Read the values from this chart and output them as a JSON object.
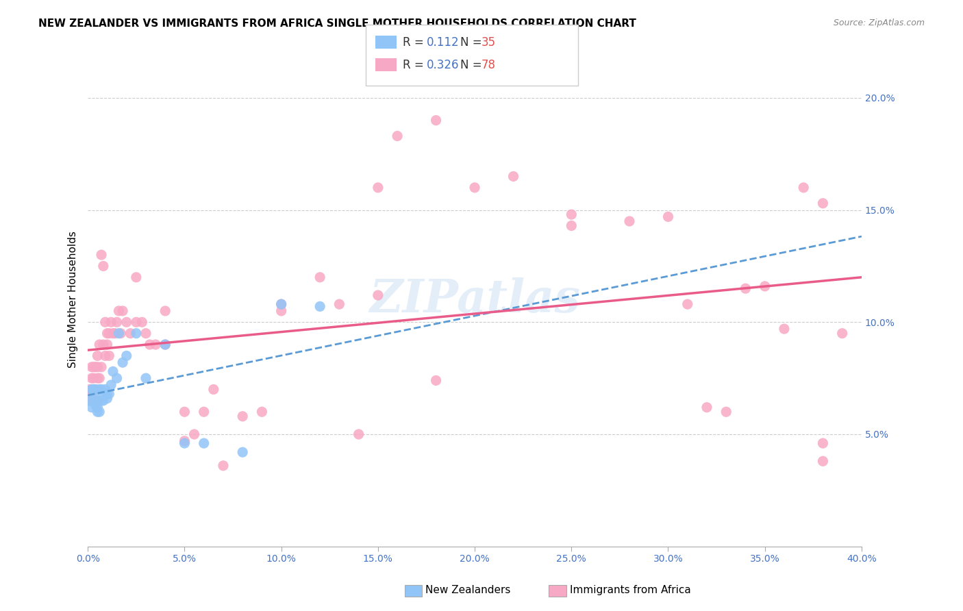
{
  "title": "NEW ZEALANDER VS IMMIGRANTS FROM AFRICA SINGLE MOTHER HOUSEHOLDS CORRELATION CHART",
  "source": "Source: ZipAtlas.com",
  "ylabel": "Single Mother Households",
  "ylabel_right_ticks": [
    "5.0%",
    "10.0%",
    "15.0%",
    "20.0%"
  ],
  "ylabel_right_vals": [
    0.05,
    0.1,
    0.15,
    0.2
  ],
  "xmin": 0.0,
  "xmax": 0.4,
  "ymin": 0.0,
  "ymax": 0.22,
  "nz_R": "0.112",
  "nz_N": "35",
  "af_R": "0.326",
  "af_N": "78",
  "nz_color": "#92c5f7",
  "af_color": "#f7a8c4",
  "nz_line_color": "#5b9bd5",
  "af_line_color": "#e95c8a",
  "watermark": "ZIPatlas",
  "nz_scatter_x": [
    0.001,
    0.002,
    0.002,
    0.003,
    0.003,
    0.003,
    0.004,
    0.004,
    0.005,
    0.005,
    0.005,
    0.006,
    0.006,
    0.007,
    0.007,
    0.008,
    0.008,
    0.009,
    0.01,
    0.01,
    0.011,
    0.012,
    0.013,
    0.015,
    0.016,
    0.018,
    0.02,
    0.025,
    0.03,
    0.04,
    0.05,
    0.06,
    0.08,
    0.1,
    0.12
  ],
  "nz_scatter_y": [
    0.065,
    0.062,
    0.07,
    0.065,
    0.068,
    0.07,
    0.063,
    0.07,
    0.06,
    0.062,
    0.065,
    0.06,
    0.07,
    0.065,
    0.07,
    0.065,
    0.068,
    0.07,
    0.066,
    0.068,
    0.068,
    0.072,
    0.078,
    0.075,
    0.095,
    0.082,
    0.085,
    0.095,
    0.075,
    0.09,
    0.046,
    0.046,
    0.042,
    0.108,
    0.107
  ],
  "af_scatter_x": [
    0.001,
    0.001,
    0.002,
    0.002,
    0.002,
    0.003,
    0.003,
    0.003,
    0.004,
    0.004,
    0.004,
    0.005,
    0.005,
    0.005,
    0.006,
    0.006,
    0.007,
    0.007,
    0.008,
    0.008,
    0.009,
    0.009,
    0.01,
    0.01,
    0.011,
    0.011,
    0.012,
    0.013,
    0.014,
    0.015,
    0.016,
    0.017,
    0.018,
    0.02,
    0.022,
    0.025,
    0.025,
    0.028,
    0.03,
    0.032,
    0.035,
    0.04,
    0.04,
    0.05,
    0.05,
    0.055,
    0.06,
    0.065,
    0.07,
    0.08,
    0.09,
    0.1,
    0.1,
    0.12,
    0.13,
    0.15,
    0.15,
    0.16,
    0.18,
    0.2,
    0.22,
    0.25,
    0.28,
    0.3,
    0.31,
    0.32,
    0.33,
    0.34,
    0.35,
    0.36,
    0.37,
    0.38,
    0.39,
    0.38,
    0.38,
    0.25,
    0.18,
    0.14
  ],
  "af_scatter_y": [
    0.065,
    0.07,
    0.068,
    0.075,
    0.08,
    0.07,
    0.075,
    0.08,
    0.065,
    0.07,
    0.08,
    0.075,
    0.08,
    0.085,
    0.075,
    0.09,
    0.08,
    0.13,
    0.09,
    0.125,
    0.085,
    0.1,
    0.09,
    0.095,
    0.085,
    0.095,
    0.1,
    0.095,
    0.095,
    0.1,
    0.105,
    0.095,
    0.105,
    0.1,
    0.095,
    0.1,
    0.12,
    0.1,
    0.095,
    0.09,
    0.09,
    0.105,
    0.09,
    0.06,
    0.047,
    0.05,
    0.06,
    0.07,
    0.036,
    0.058,
    0.06,
    0.108,
    0.105,
    0.12,
    0.108,
    0.112,
    0.16,
    0.183,
    0.19,
    0.16,
    0.165,
    0.143,
    0.145,
    0.147,
    0.108,
    0.062,
    0.06,
    0.115,
    0.116,
    0.097,
    0.16,
    0.153,
    0.095,
    0.046,
    0.038,
    0.148,
    0.074,
    0.05
  ]
}
